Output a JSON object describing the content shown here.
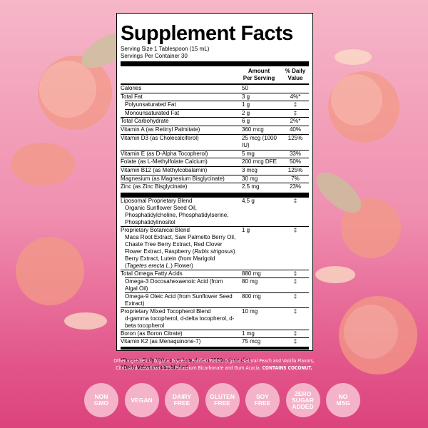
{
  "label": {
    "title": "Supplement Facts",
    "serving": [
      "Serving Size 1 Tablespoon (15 mL)",
      "Servings Per Container 30"
    ],
    "header": {
      "amount": [
        "Amount",
        "Per Serving"
      ],
      "dv": [
        "% Daily",
        "Value"
      ]
    },
    "vitamins": [
      {
        "name": "Calories",
        "amount": "50"
      },
      {
        "name": "Total Fat",
        "amount": "3 g",
        "dv": "4%*",
        "sub": [
          {
            "name": "Polyunsaturated Fat",
            "amount": "1 g",
            "dv": "‡"
          },
          {
            "name": "Monounsaturated Fat",
            "amount": "2 g",
            "dv": "‡"
          }
        ]
      },
      {
        "name": "Total Carbohydrate",
        "amount": "6 g",
        "dv": "2%*"
      },
      {
        "name": "Vitamin A (as Retinyl Palmitate)",
        "amount": "360 mcg",
        "dv": "40%"
      },
      {
        "name": "Vitamin D3 (as Cholecalciferol)",
        "amount": "25 mcg (1000 IU)",
        "dv": "125%"
      },
      {
        "name": "Vitamin E (as D-Alpha Tocopherol)",
        "amount": "5 mg",
        "dv": "33%"
      },
      {
        "name": "Folate (as L-Methylfolate Calcium)",
        "amount": "200 mcg DFE",
        "dv": "50%"
      },
      {
        "name": "Vitamin B12 (as Methylcobalamin)",
        "amount": "3 mcg",
        "dv": "125%"
      },
      {
        "name": "Magnesium (as Magnesium Bisglycinate)",
        "amount": "30 mg",
        "dv": "7%"
      },
      {
        "name": "Zinc (as Zinc Bisglycinate)",
        "amount": "2.5 mg",
        "dv": "23%"
      }
    ],
    "blends": [
      {
        "name": "Liposomal Proprietary Blend",
        "amount": "4.5 g",
        "dv": "‡",
        "detail": [
          "Organic Sunflower Seed Oil, Phosphatidylcholine, Phosphatidylserine, Phosphatidylinositol"
        ]
      },
      {
        "name": "Proprietary Botanical Blend",
        "amount": "1 g",
        "dv": "‡",
        "detail": [
          "Maca Root Extract, Saw Palmetto Berry Oil, Chaste Tree Berry Extract, Red Clover Flower Extract, Raspberry (",
          "Rubis strigosus",
          ") Berry Extract, Lutein (from Marigold (",
          "Tagetes erecta L.",
          ") Flower)"
        ]
      },
      {
        "name": "Total Omega Fatty Acids",
        "amount": "880 mg",
        "dv": "‡",
        "sub": [
          {
            "name": "Omega-3 Docosahexaenoic Acid (from Algal Oil)",
            "amount": "80 mg",
            "dv": "‡"
          },
          {
            "name": "Omega-9 Oleic Acid (from Sunflower Seed Extract)",
            "amount": "800 mg",
            "dv": "‡"
          }
        ]
      },
      {
        "name": "Proprietary Mixed Tocopherol Blend",
        "amount": "10 mg",
        "dv": "‡",
        "detail": [
          "d-gamma tocopherol, d-delta tocopherol, d-beta tocopherol"
        ]
      },
      {
        "name": "Boron (as Boron Citrate)",
        "amount": "1 mg",
        "dv": "‡"
      },
      {
        "name": "Vitamin K2 (as Menaquinone-7)",
        "amount": "75 mcg",
        "dv": "‡"
      }
    ],
    "footnotes": [
      "*Percent Daily Values are based on a 2000 calorie diet.",
      "‡Daily Value not established."
    ]
  },
  "ingredients": {
    "text": "Other Ingredients: Organic Glycerin, Purified Water, Organic Natural Peach and Vanilla Flavors, Citric Acid, Less than 1.5%: Potassium Bicarbonate and Gum Acacia. ",
    "warning": "CONTAINS COCONUT."
  },
  "badges": [
    [
      "NON",
      "GMO"
    ],
    [
      "VEGAN"
    ],
    [
      "DAIRY",
      "FREE"
    ],
    [
      "GLUTEN",
      "FREE"
    ],
    [
      "SOY",
      "FREE"
    ],
    [
      "ZERO",
      "SUGAR",
      "ADDED"
    ],
    [
      "NO",
      "MSG"
    ]
  ]
}
